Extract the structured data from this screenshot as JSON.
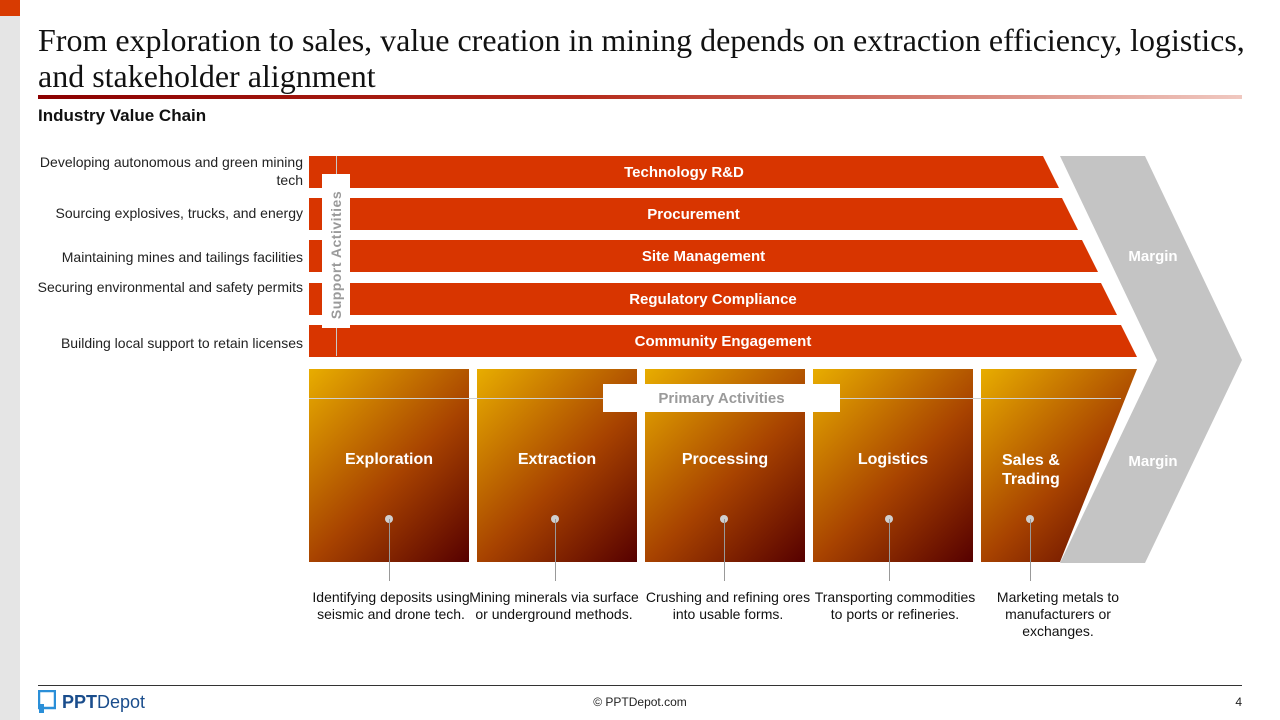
{
  "slide": {
    "title": "From exploration to sales, value creation in mining depends on extraction efficiency, logistics, and stakeholder alignment",
    "subtitle": "Industry Value Chain"
  },
  "support": {
    "label": "Support Activities",
    "rows": [
      {
        "bar": "Technology R&D",
        "desc": "Developing autonomous and green mining tech"
      },
      {
        "bar": "Procurement",
        "desc": "Sourcing explosives, trucks, and energy"
      },
      {
        "bar": "Site Management",
        "desc": "Maintaining mines and tailings facilities"
      },
      {
        "bar": "Regulatory Compliance",
        "desc": "Securing environmental and safety permits"
      },
      {
        "bar": "Community Engagement",
        "desc": "Building local support to retain licenses"
      }
    ]
  },
  "primary": {
    "label": "Primary Activities",
    "items": [
      {
        "label": "Exploration",
        "desc": "Identifying deposits using seismic and drone tech."
      },
      {
        "label": "Extraction",
        "desc": "Mining minerals via surface or underground methods."
      },
      {
        "label": "Processing",
        "desc": "Crushing and refining ores into usable forms."
      },
      {
        "label": "Logistics",
        "desc": "Transporting commodities to ports or refineries."
      },
      {
        "label": "Sales & Trading",
        "desc": "Marketing metals to manufacturers or exchanges."
      }
    ]
  },
  "margin": {
    "top_label": "Margin",
    "bottom_label": "Margin"
  },
  "colors": {
    "support_bar": "#d83500",
    "accent": "#d83b01",
    "margin_chevron": "#c4c4c4"
  },
  "footer": {
    "logo_bold": "PPT",
    "logo_rest": "Depot",
    "copyright": "© PPTDepot.com",
    "page_number": "4"
  }
}
